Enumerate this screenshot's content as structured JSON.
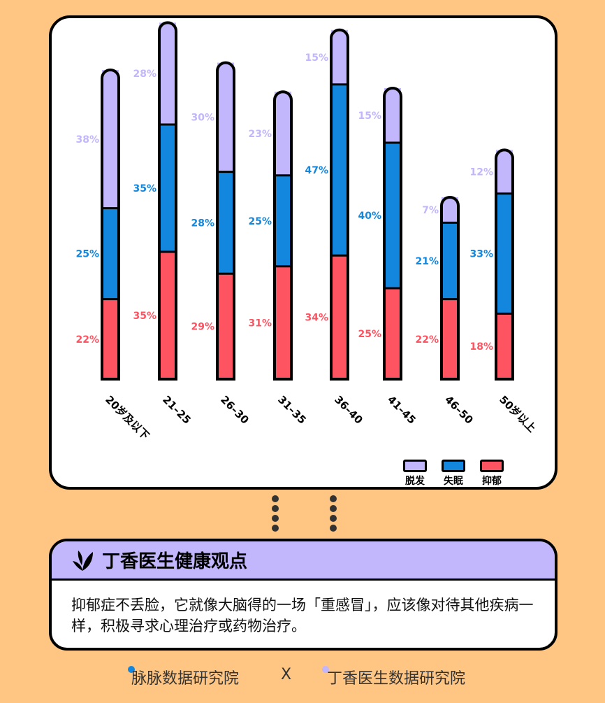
{
  "chart_data": {
    "type": "bar",
    "stacked": true,
    "categories": [
      "20岁及以下",
      "21–25",
      "26–30",
      "31–35",
      "36–40",
      "41–45",
      "46–50",
      "50岁以上"
    ],
    "series": [
      {
        "name": "抑郁",
        "color": "#FE5462",
        "values": [
          22,
          35,
          29,
          31,
          34,
          25,
          22,
          18
        ],
        "labels": [
          "22%",
          "35%",
          "29%",
          "31%",
          "34%",
          "25%",
          "22%",
          "18%"
        ]
      },
      {
        "name": "失眠",
        "color": "#1387DE",
        "values": [
          25,
          35,
          28,
          25,
          47,
          40,
          21,
          33
        ],
        "labels": [
          "25%",
          "35%",
          "28%",
          "25%",
          "47%",
          "40%",
          "21%",
          "33%"
        ]
      },
      {
        "name": "脱发",
        "color": "#C2B6FC",
        "values": [
          38,
          28,
          30,
          23,
          15,
          15,
          7,
          12
        ],
        "labels": [
          "38%",
          "28%",
          "30%",
          "23%",
          "15%",
          "15%",
          "7%",
          "12%"
        ]
      }
    ],
    "legend_position": "bottom-right",
    "grid": false
  },
  "legend": {
    "items": [
      {
        "label": "脱发",
        "color": "#C2B6FC"
      },
      {
        "label": "失眠",
        "color": "#1387DE"
      },
      {
        "label": "抑郁",
        "color": "#FE5462"
      }
    ]
  },
  "panel": {
    "title": "丁香医生健康观点",
    "icon": "leaf-icon",
    "body": "抑郁症不丢脸，它就像大脑得的一场「重感冒」，应该像对待其他疾病一样，积极寻求心理治疗或药物治疗。"
  },
  "footer": {
    "left": "脉脉数据研究院",
    "separator": "X",
    "right": "丁香医生数据研究院",
    "left_dot_color": "#1387DE",
    "right_dot_color": "#C2B6FC"
  }
}
